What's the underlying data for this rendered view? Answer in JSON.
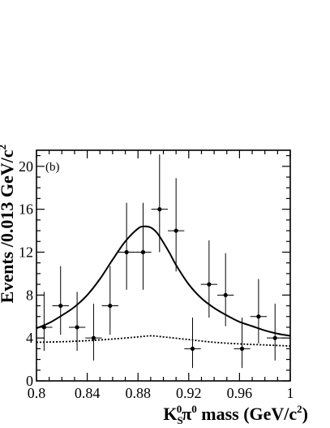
{
  "panel_label": "(b)",
  "chart_data": {
    "type": "scatter",
    "title": "",
    "xlabel_main": "K",
    "xlabel_sub": "S",
    "xlabel_sup": "0",
    "xlabel_pi": "π",
    "xlabel_pi_sup": "0",
    "xlabel_rest": " mass (GeV/c",
    "xlabel_rest_sup": "2",
    "xlabel_close": ")",
    "ylabel_main": "Events /0.013 GeV/c",
    "ylabel_sup": "2",
    "xlim": [
      0.8,
      1.0
    ],
    "ylim": [
      0,
      21.5
    ],
    "xticks": [
      {
        "value": 0.8,
        "label": "0.8"
      },
      {
        "value": 0.84,
        "label": "0.84"
      },
      {
        "value": 0.88,
        "label": "0.88"
      },
      {
        "value": 0.92,
        "label": "0.92"
      },
      {
        "value": 0.96,
        "label": "0.96"
      },
      {
        "value": 1.0,
        "label": "1"
      }
    ],
    "yticks": [
      {
        "value": 0,
        "label": "0"
      },
      {
        "value": 4,
        "label": "4"
      },
      {
        "value": 8,
        "label": "8"
      },
      {
        "value": 12,
        "label": "12"
      },
      {
        "value": 16,
        "label": "16"
      },
      {
        "value": 20,
        "label": "20"
      }
    ],
    "points": [
      {
        "x": 0.806,
        "y": 5,
        "xerr": 0.0065,
        "ylo": 2.8,
        "yhi": 8.3
      },
      {
        "x": 0.819,
        "y": 7,
        "xerr": 0.0065,
        "ylo": 4.3,
        "yhi": 10.7
      },
      {
        "x": 0.832,
        "y": 5,
        "xerr": 0.0065,
        "ylo": 2.8,
        "yhi": 8.3
      },
      {
        "x": 0.845,
        "y": 4,
        "xerr": 0.0065,
        "ylo": 1.9,
        "yhi": 7.2
      },
      {
        "x": 0.858,
        "y": 7,
        "xerr": 0.0065,
        "ylo": 4.3,
        "yhi": 10.7
      },
      {
        "x": 0.871,
        "y": 12,
        "xerr": 0.0065,
        "ylo": 8.5,
        "yhi": 16.6
      },
      {
        "x": 0.884,
        "y": 12,
        "xerr": 0.0065,
        "ylo": 8.5,
        "yhi": 16.6
      },
      {
        "x": 0.897,
        "y": 16,
        "xerr": 0.0065,
        "ylo": 12.0,
        "yhi": 21.1
      },
      {
        "x": 0.91,
        "y": 14,
        "xerr": 0.0065,
        "ylo": 10.2,
        "yhi": 18.9
      },
      {
        "x": 0.923,
        "y": 3,
        "xerr": 0.0065,
        "ylo": 1.2,
        "yhi": 5.9
      },
      {
        "x": 0.936,
        "y": 9,
        "xerr": 0.0065,
        "ylo": 5.9,
        "yhi": 13.1
      },
      {
        "x": 0.949,
        "y": 8,
        "xerr": 0.0065,
        "ylo": 5.1,
        "yhi": 11.9
      },
      {
        "x": 0.962,
        "y": 3,
        "xerr": 0.0065,
        "ylo": 1.2,
        "yhi": 5.9
      },
      {
        "x": 0.975,
        "y": 6,
        "xerr": 0.0065,
        "ylo": 3.5,
        "yhi": 9.5
      },
      {
        "x": 0.988,
        "y": 4,
        "xerr": 0.0065,
        "ylo": 1.9,
        "yhi": 7.2
      }
    ],
    "total_fit": {
      "x": [
        0.8,
        0.81,
        0.82,
        0.83,
        0.84,
        0.85,
        0.86,
        0.87,
        0.88,
        0.885,
        0.89,
        0.895,
        0.9,
        0.905,
        0.91,
        0.92,
        0.93,
        0.94,
        0.95,
        0.96,
        0.97,
        0.98,
        0.99,
        1.0
      ],
      "y": [
        4.9,
        5.4,
        6.1,
        6.9,
        8.0,
        9.5,
        11.3,
        13.0,
        14.2,
        14.4,
        14.3,
        13.8,
        12.9,
        11.9,
        10.8,
        9.0,
        7.7,
        6.8,
        6.1,
        5.5,
        5.1,
        4.7,
        4.4,
        4.2
      ]
    },
    "background_fit": {
      "x": [
        0.8,
        0.82,
        0.84,
        0.86,
        0.88,
        0.89,
        0.9,
        0.92,
        0.94,
        0.96,
        0.98,
        1.0
      ],
      "y": [
        3.6,
        3.65,
        3.75,
        3.9,
        4.1,
        4.2,
        4.1,
        3.85,
        3.6,
        3.45,
        3.35,
        3.25
      ]
    }
  }
}
